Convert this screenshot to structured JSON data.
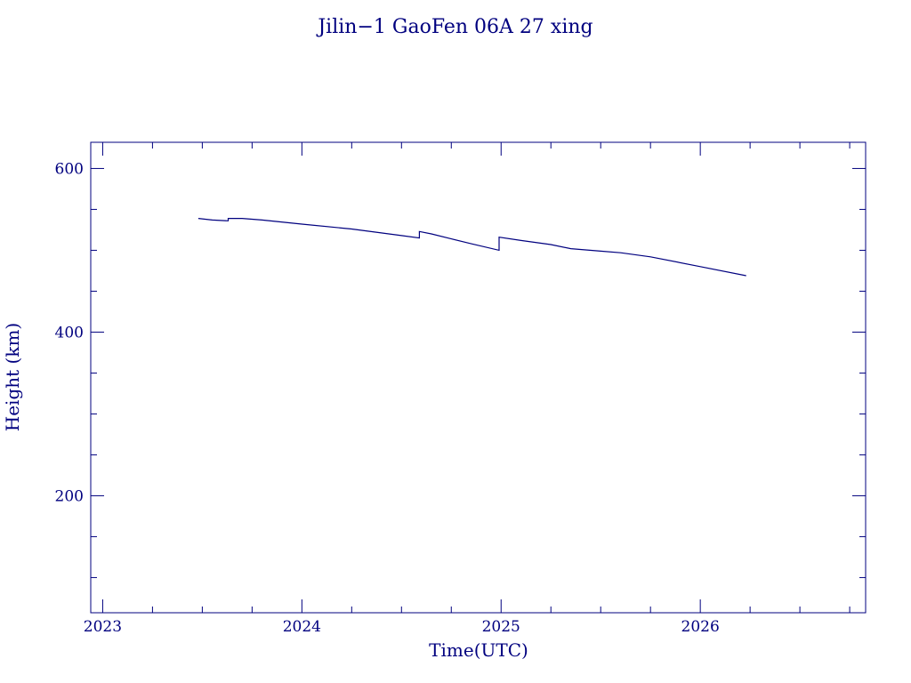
{
  "colors": {
    "axis": "#00007f",
    "line": "#00007f",
    "text": "#00007f",
    "background": "#ffffff"
  },
  "chart_data": {
    "type": "line",
    "title": "Jilin−1 GaoFen 06A 27 xing",
    "xlabel": "Time(UTC)",
    "ylabel": "Height (km)",
    "x_unit": "year",
    "xlim": [
      2022.94,
      2026.83
    ],
    "ylim": [
      57,
      632
    ],
    "x_ticks": [
      {
        "value": 2023,
        "label": "2023"
      },
      {
        "value": 2024,
        "label": "2024"
      },
      {
        "value": 2025,
        "label": "2025"
      },
      {
        "value": 2026,
        "label": "2026"
      }
    ],
    "x_minor_ticks": [
      2023.25,
      2023.5,
      2023.75,
      2024.25,
      2024.5,
      2024.75,
      2025.25,
      2025.5,
      2025.75,
      2026.25,
      2026.5,
      2026.75
    ],
    "y_ticks": [
      {
        "value": 200,
        "label": "200"
      },
      {
        "value": 400,
        "label": "400"
      },
      {
        "value": 600,
        "label": "600"
      }
    ],
    "y_minor_ticks": [
      100,
      150,
      250,
      300,
      350,
      450,
      500,
      550
    ],
    "grid": false,
    "legend": "none",
    "series": [
      {
        "x": [
          2023.48,
          2023.55,
          2023.63,
          2023.63,
          2023.7,
          2023.8,
          2024.0,
          2024.25,
          2024.5,
          2024.59,
          2024.59,
          2024.65,
          2024.75,
          2024.85,
          2024.99,
          2024.99,
          2025.1,
          2025.25,
          2025.35,
          2025.5,
          2025.6,
          2025.75,
          2026.0,
          2026.23
        ],
        "y": [
          539,
          537,
          536,
          539,
          539,
          537,
          532,
          526,
          518,
          515,
          523,
          520,
          514,
          508,
          500,
          516,
          512,
          507,
          502,
          499,
          497,
          492,
          480,
          469
        ]
      }
    ]
  }
}
